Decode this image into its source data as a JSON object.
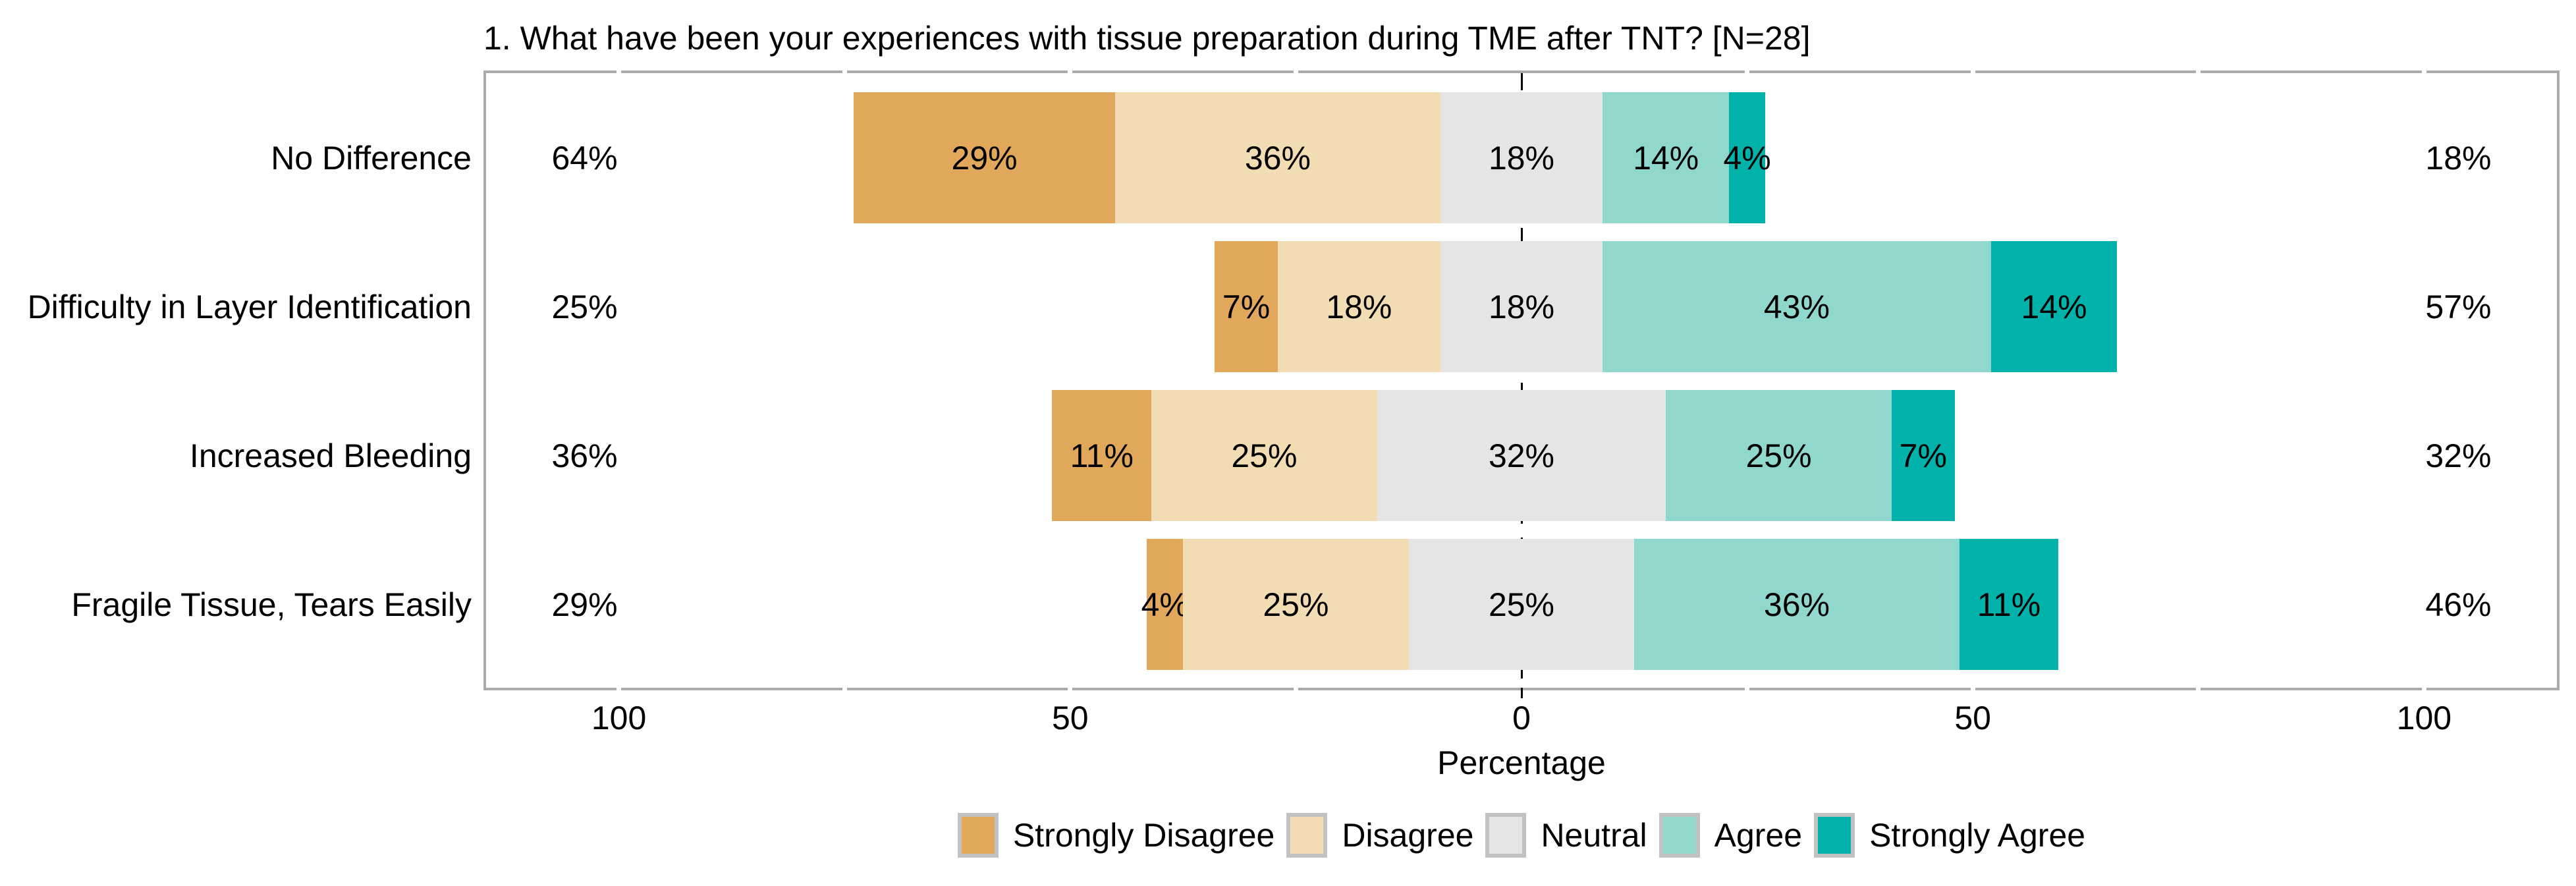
{
  "title": "1. What have been your experiences with tissue preparation during TME after TNT? [N=28]",
  "axis": {
    "xlabel": "Percentage",
    "tick_labels": [
      "100",
      "50",
      "0",
      "50",
      "100"
    ],
    "tick_values": [
      -100,
      -50,
      0,
      50,
      100
    ],
    "minor_tick_values": [
      -100,
      -75,
      -50,
      -25,
      25,
      50,
      75,
      100
    ],
    "domain": [
      -115,
      115
    ],
    "zero_line_style": "dashed"
  },
  "legend": {
    "position": "bottom-center",
    "items": [
      {
        "label": "Strongly Disagree",
        "color": "#E1A85B"
      },
      {
        "label": "Disagree",
        "color": "#F2DCB3"
      },
      {
        "label": "Neutral",
        "color": "#E5E5E5"
      },
      {
        "label": "Agree",
        "color": "#90D8CE"
      },
      {
        "label": "Strongly Agree",
        "color": "#00B2A9"
      }
    ]
  },
  "chart_data": {
    "type": "bar",
    "variant": "diverging-stacked-likert",
    "orientation": "horizontal",
    "sample_size": 28,
    "title": "1. What have been your experiences with tissue preparation during TME after TNT? [N=28]",
    "xlabel": "Percentage",
    "categories": [
      "No Difference",
      "Difficulty in Layer Identification",
      "Increased Bleeding",
      "Fragile Tissue, Tears Easily"
    ],
    "series": [
      {
        "name": "Strongly Disagree",
        "color": "#E1A85B",
        "values": [
          29,
          7,
          11,
          4
        ]
      },
      {
        "name": "Disagree",
        "color": "#F2DCB3",
        "values": [
          36,
          18,
          25,
          25
        ]
      },
      {
        "name": "Neutral",
        "color": "#E5E5E5",
        "values": [
          18,
          18,
          32,
          25
        ]
      },
      {
        "name": "Agree",
        "color": "#90D8CE",
        "values": [
          14,
          43,
          25,
          36
        ]
      },
      {
        "name": "Strongly Agree",
        "color": "#00B2A9",
        "values": [
          4,
          14,
          7,
          11
        ]
      }
    ],
    "totals_disagree_side": [
      "64%",
      "25%",
      "36%",
      "29%"
    ],
    "totals_agree_side": [
      "18%",
      "57%",
      "32%",
      "46%"
    ],
    "value_suffix": "%",
    "neutral_centered_on_zero": true,
    "xlim": [
      -115,
      115
    ]
  }
}
